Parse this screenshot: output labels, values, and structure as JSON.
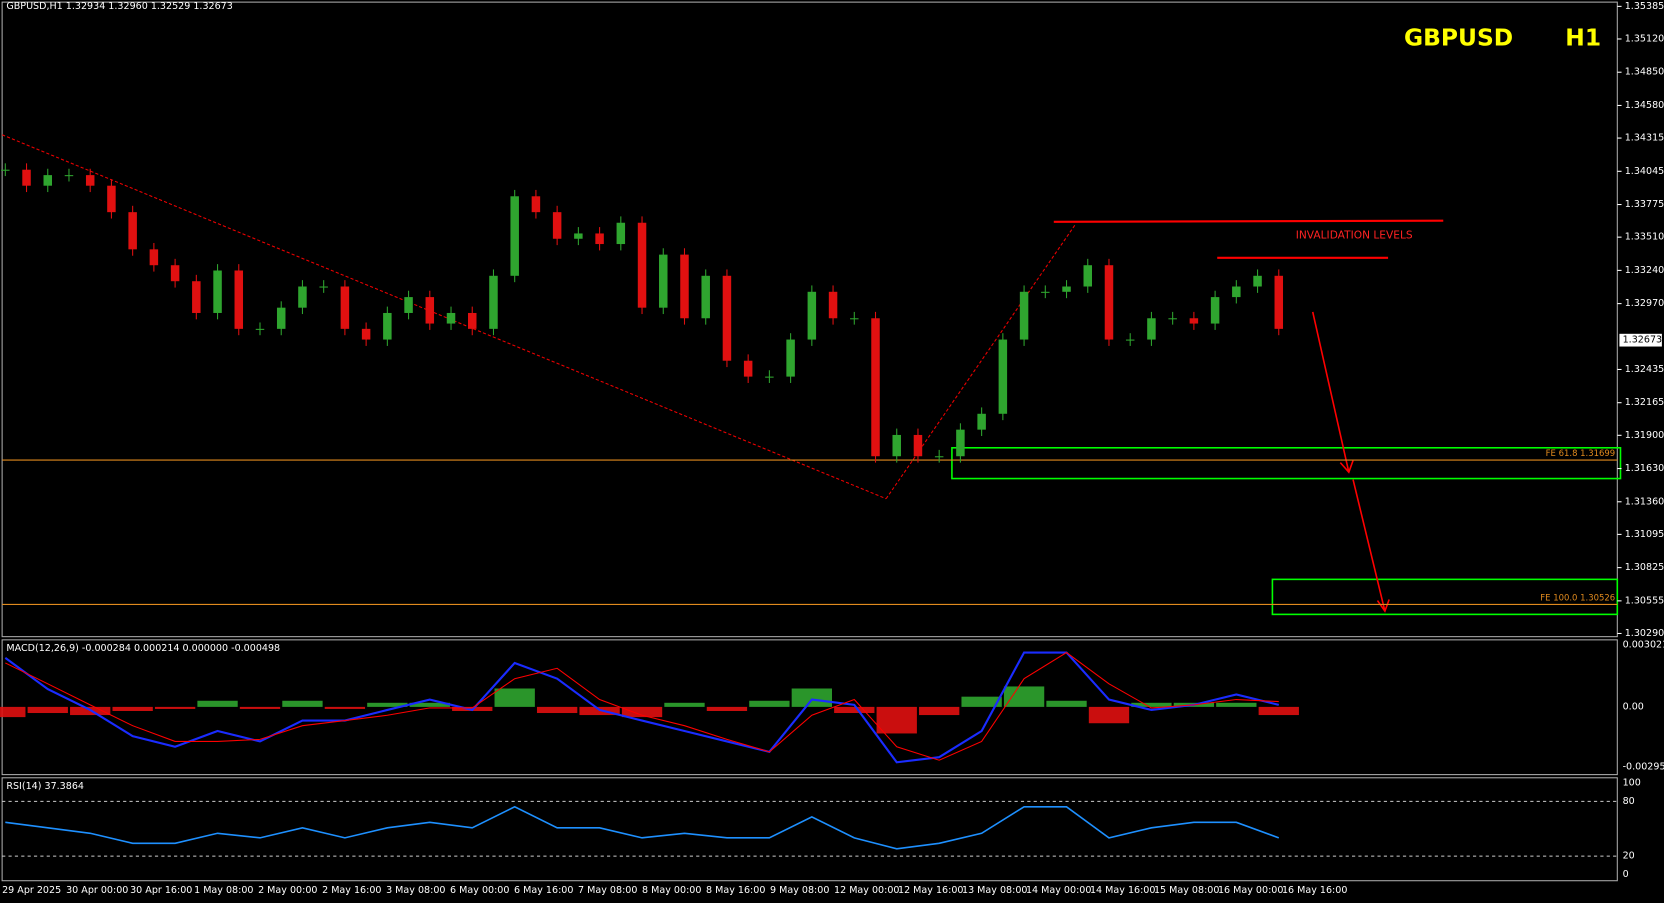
{
  "header_text": "GBPUSD,H1  1.32934 1.32960 1.32529 1.32673",
  "symbol": "GBPUSD",
  "timeframe": "H1",
  "annotations": {
    "invalidation": "INVALIDATION LEVELS",
    "fe618": {
      "label": "FE 61.8 1.31699",
      "value": 1.31699
    },
    "fe100": {
      "label": "FE 100.0 1.30526",
      "value": 1.30526
    }
  },
  "price_axis": {
    "ylim": [
      1.3029,
      1.35385
    ],
    "yticks": [
      {
        "value": 1.35385,
        "label": "1.35385"
      },
      {
        "value": 1.3512,
        "label": "1.35120"
      },
      {
        "value": 1.3485,
        "label": "1.34850"
      },
      {
        "value": 1.3458,
        "label": "1.34580"
      },
      {
        "value": 1.34315,
        "label": "1.34315"
      },
      {
        "value": 1.34045,
        "label": "1.34045"
      },
      {
        "value": 1.33775,
        "label": "1.33775"
      },
      {
        "value": 1.3351,
        "label": "1.33510"
      },
      {
        "value": 1.3324,
        "label": "1.33240"
      },
      {
        "value": 1.3297,
        "label": "1.32970"
      },
      {
        "value": 1.32435,
        "label": "1.32435"
      },
      {
        "value": 1.32165,
        "label": "1.32165"
      },
      {
        "value": 1.319,
        "label": "1.31900"
      },
      {
        "value": 1.3163,
        "label": "1.31630"
      },
      {
        "value": 1.3136,
        "label": "1.31360"
      },
      {
        "value": 1.31095,
        "label": "1.31095"
      },
      {
        "value": 1.30825,
        "label": "1.30825"
      },
      {
        "value": 1.30555,
        "label": "1.30555"
      },
      {
        "value": 1.3029,
        "label": "1.30290"
      }
    ],
    "current_price": 1.32673
  },
  "time_labels": [
    "29 Apr 2025",
    "30 Apr 00:00",
    "30 Apr 16:00",
    "1 May 08:00",
    "2 May 00:00",
    "2 May 16:00",
    "3 May 08:00",
    "6 May 00:00",
    "6 May 16:00",
    "7 May 08:00",
    "8 May 00:00",
    "8 May 16:00",
    "9 May 08:00",
    "12 May 00:00",
    "12 May 16:00",
    "13 May 08:00",
    "14 May 00:00",
    "14 May 16:00",
    "15 May 08:00",
    "16 May 00:00",
    "16 May 16:00"
  ],
  "closes": [
    1.34058,
    1.33928,
    1.34014,
    1.34014,
    1.33928,
    1.33713,
    1.33411,
    1.33282,
    1.33152,
    1.32894,
    1.33239,
    1.32765,
    1.32765,
    1.32937,
    1.33109,
    1.33109,
    1.32765,
    1.32678,
    1.32894,
    1.33023,
    1.32808,
    1.32894,
    1.32765,
    1.33196,
    1.33842,
    1.33713,
    1.33497,
    1.3354,
    1.33454,
    1.33627,
    1.32937,
    1.33368,
    1.32851,
    1.33196,
    1.32506,
    1.32377,
    1.32377,
    1.32678,
    1.33066,
    1.32851,
    1.32851,
    1.3173,
    1.31903,
    1.3173,
    1.3173,
    1.31946,
    1.32075,
    1.32678,
    1.33066,
    1.33066,
    1.33109,
    1.33282,
    1.32678,
    1.32678,
    1.32851,
    1.32851,
    1.32808,
    1.33023,
    1.33109,
    1.33196,
    1.32765
  ],
  "macd": {
    "label": "MACD(12,26,9) -0.000284 0.000214 0.000000 -0.000498",
    "ylim": [
      -0.00295,
      0.003021
    ],
    "yticks": [
      {
        "value": 0.003021,
        "label": "0.003021"
      },
      {
        "value": 0,
        "label": "0.00"
      },
      {
        "value": -0.00295,
        "label": "-0.00295"
      }
    ],
    "histogram": [
      -0.0005,
      -0.0003,
      -0.0004,
      -0.0002,
      -0.0001,
      0.0003,
      -0.0001,
      0.0003,
      -0.0001,
      0.0002,
      0.0002,
      -0.0002,
      0.0009,
      -0.0003,
      -0.0004,
      -0.0005,
      0.0002,
      -0.0002,
      0.0003,
      0.0009,
      -0.0003,
      -0.0013,
      -0.0004,
      0.0005,
      0.001,
      0.0003,
      -0.0008,
      0.0002,
      0.0002,
      0.0002,
      -0.0004
    ],
    "main": [
      0.0024,
      0.00087,
      -0.00015,
      -0.00143,
      -0.00195,
      -0.00118,
      -0.00169,
      -0.00067,
      -0.00067,
      -0.00015,
      0.00036,
      -0.00015,
      0.00215,
      0.00138,
      -0.00015,
      -0.00067,
      -0.00118,
      -0.00169,
      -0.0022,
      0.00036,
      0.0001,
      -0.00271,
      -0.00246,
      -0.00118,
      0.00266,
      0.00266,
      0.00036,
      -0.00015,
      0.0001,
      0.00061,
      0.0001
    ],
    "signal": [
      0.00215,
      0.00113,
      0.0001,
      -0.00092,
      -0.00169,
      -0.00169,
      -0.00159,
      -0.00092,
      -0.00067,
      -0.00041,
      -5e-05,
      -5e-05,
      0.00138,
      0.00189,
      0.00036,
      -0.00041,
      -0.00092,
      -0.00159,
      -0.0022,
      -0.00041,
      0.00036,
      -0.00195,
      -0.00261,
      -0.00169,
      0.00138,
      0.00266,
      0.00113,
      -5e-05,
      0.0001,
      0.00036,
      0.00026
    ]
  },
  "rsi": {
    "label": "RSI(14) 37.3864",
    "ylim": [
      0,
      100
    ],
    "yticks": [
      100,
      80,
      20,
      0
    ],
    "levels": [
      80,
      20
    ],
    "values": [
      57,
      51,
      45,
      34,
      34,
      45,
      40,
      51,
      40,
      51,
      57,
      51,
      74,
      51,
      51,
      40,
      45,
      40,
      40,
      63,
      40,
      28,
      34,
      45,
      74,
      74,
      40,
      51,
      57,
      57,
      40
    ]
  }
}
